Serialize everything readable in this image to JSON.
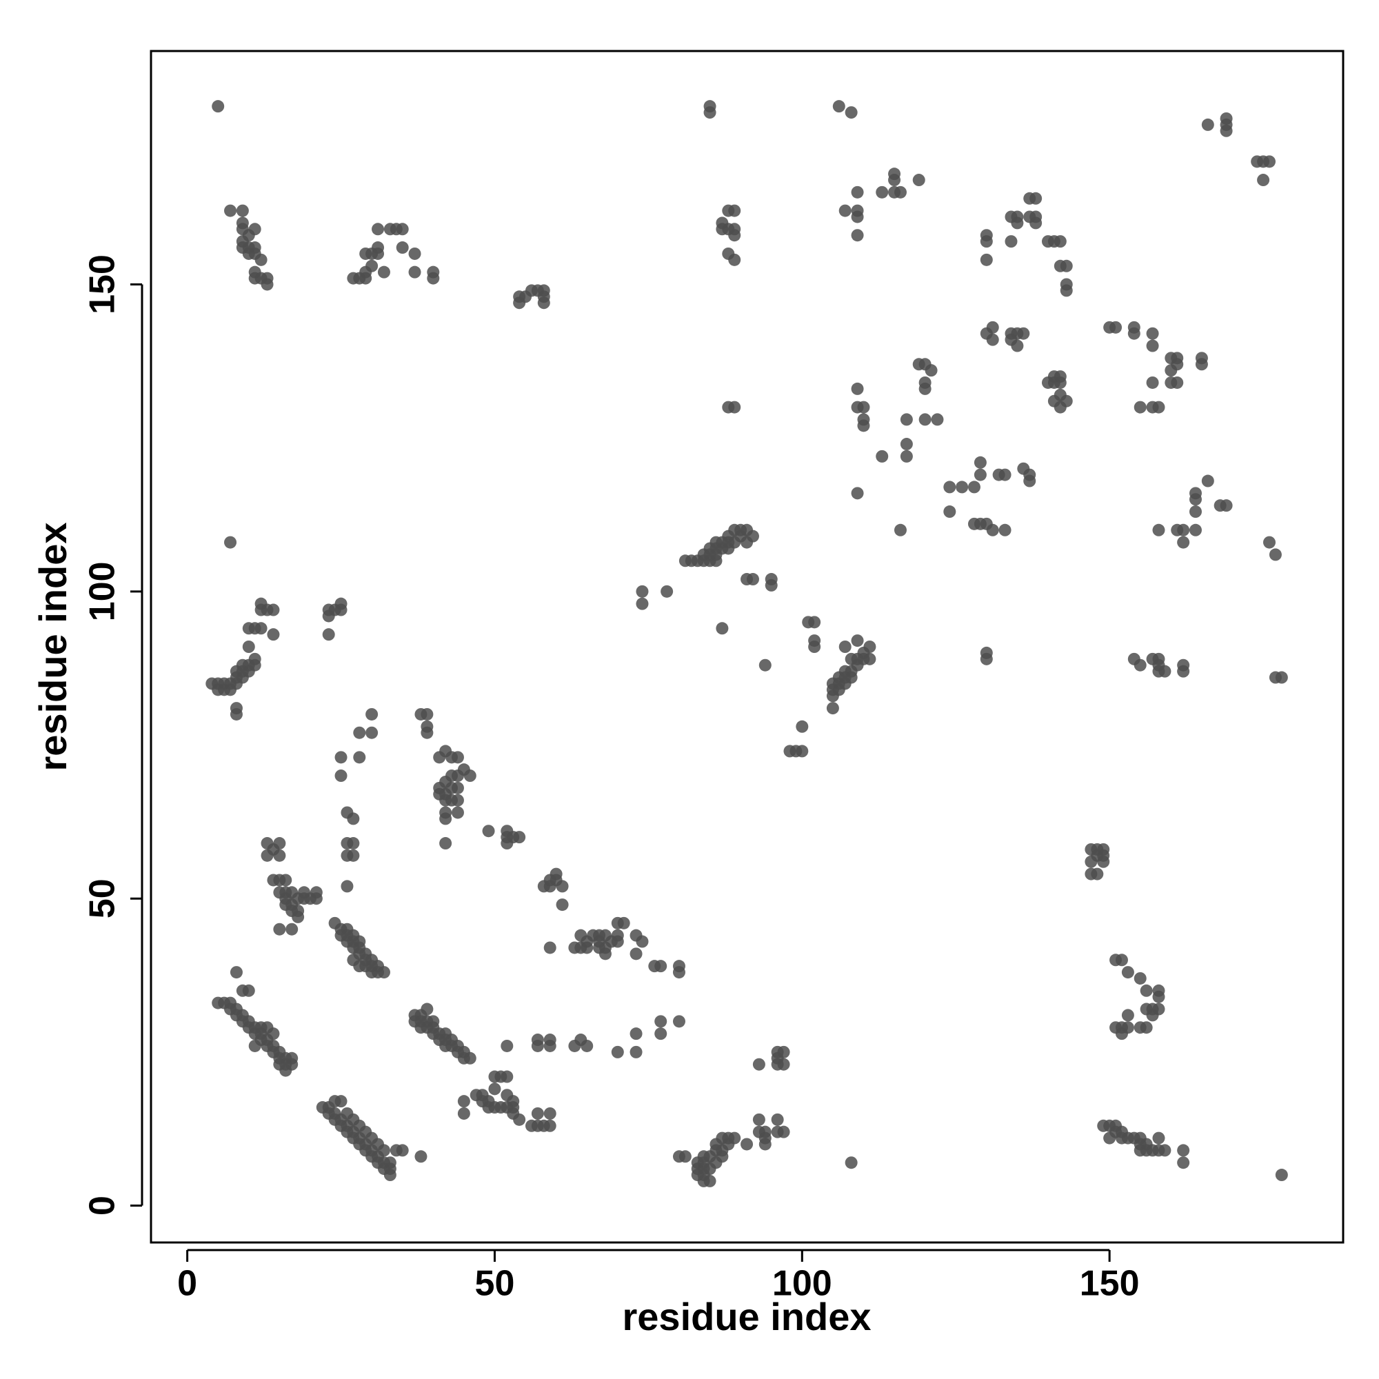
{
  "chart_data": {
    "type": "scatter",
    "xlabel": "residue index",
    "ylabel": "residue index",
    "xlim": [
      -5.9,
      188
    ],
    "ylim": [
      -6,
      188
    ],
    "xticks": [
      0,
      50,
      100,
      150
    ],
    "yticks": [
      0,
      50,
      100,
      150
    ],
    "color": "#4d4d4d",
    "x": [
      5,
      5,
      6,
      7,
      7,
      8,
      8,
      9,
      9,
      10,
      10,
      11,
      11,
      12,
      12,
      13,
      13,
      14,
      14,
      15,
      15,
      16,
      16,
      17,
      17,
      8,
      9,
      10,
      11,
      12,
      13,
      14,
      15,
      16,
      22,
      23,
      23,
      24,
      24,
      25,
      25,
      26,
      26,
      27,
      27,
      28,
      28,
      29,
      29,
      30,
      30,
      31,
      31,
      32,
      32,
      33,
      33,
      33,
      34,
      35,
      38,
      24,
      25,
      26,
      27,
      28,
      29,
      30,
      31,
      32,
      37,
      37,
      38,
      38,
      38,
      39,
      39,
      40,
      40,
      41,
      41,
      42,
      42,
      43,
      43,
      44,
      44,
      45,
      45,
      46,
      39,
      40,
      42,
      24,
      25,
      25,
      26,
      26,
      26,
      27,
      27,
      27,
      28,
      28,
      28,
      29,
      29,
      29,
      30,
      30,
      30,
      31,
      31,
      32,
      27,
      28,
      13,
      13,
      14,
      15,
      15,
      14,
      15,
      16,
      15,
      16,
      16,
      17,
      17,
      17,
      18,
      18,
      19,
      19,
      20,
      21,
      21,
      15,
      17,
      16,
      18,
      4,
      5,
      5,
      6,
      6,
      7,
      7,
      8,
      8,
      8,
      9,
      9,
      9,
      10,
      10,
      11,
      11,
      8,
      8,
      10,
      10,
      11,
      12,
      12,
      12,
      13,
      14,
      14,
      7,
      23,
      23,
      24,
      25,
      25,
      23,
      7,
      9,
      9,
      9,
      9,
      9,
      10,
      10,
      10,
      11,
      11,
      11,
      11,
      11,
      12,
      12,
      13,
      13,
      27,
      28,
      29,
      29,
      29,
      30,
      30,
      31,
      31,
      31,
      32,
      33,
      34,
      35,
      35,
      37,
      37,
      40,
      40,
      54,
      54,
      55,
      56,
      57,
      58,
      58,
      58,
      25,
      25,
      26,
      27,
      26,
      27,
      26,
      27,
      26,
      28,
      30,
      28,
      30,
      38,
      39,
      39,
      39,
      41,
      42,
      43,
      41,
      41,
      42,
      42,
      42,
      42,
      42,
      43,
      43,
      43,
      44,
      44,
      44,
      44,
      45,
      46,
      42,
      44,
      49,
      52,
      52,
      52,
      53,
      54,
      58,
      59,
      59,
      60,
      60,
      61,
      61,
      59,
      63,
      64,
      64,
      65,
      65,
      66,
      67,
      67,
      67,
      68,
      68,
      68,
      69,
      70,
      70,
      70,
      71,
      73,
      73,
      74,
      76,
      77,
      80,
      80,
      77,
      80,
      77,
      73,
      73,
      70,
      64,
      65,
      63,
      57,
      57,
      59,
      59,
      52,
      45,
      45,
      47,
      48,
      48,
      49,
      49,
      50,
      50,
      50,
      51,
      51,
      52,
      52,
      52,
      53,
      53,
      53,
      54,
      56,
      57,
      57,
      58,
      59,
      59,
      80,
      81,
      83,
      83,
      83,
      84,
      84,
      84,
      84,
      84,
      85,
      85,
      85,
      86,
      86,
      86,
      87,
      87,
      87,
      88,
      88,
      89,
      91,
      93,
      93,
      94,
      94,
      94,
      96,
      96,
      97,
      108,
      93,
      96,
      96,
      96,
      97,
      97,
      85,
      85,
      106,
      108,
      88,
      89,
      87,
      87,
      88,
      89,
      89,
      88,
      89,
      81,
      82,
      83,
      84,
      84,
      85,
      85,
      85,
      86,
      86,
      86,
      86,
      87,
      87,
      88,
      88,
      88,
      89,
      89,
      90,
      90,
      91,
      91,
      92,
      91,
      92,
      95,
      95,
      87,
      88,
      89,
      94,
      74,
      74,
      78,
      98,
      99,
      100,
      100,
      101,
      102,
      102,
      102,
      105,
      105,
      105,
      105,
      106,
      106,
      106,
      107,
      107,
      107,
      108,
      108,
      108,
      109,
      109,
      110,
      110,
      111,
      111,
      109,
      107,
      109,
      109,
      110,
      110,
      110,
      109,
      113,
      116,
      117,
      117,
      117,
      119,
      120,
      120,
      120,
      120,
      121,
      122,
      107,
      109,
      109,
      109,
      109,
      113,
      115,
      115,
      115,
      116,
      119,
      124,
      124,
      126,
      128,
      129,
      129,
      128,
      129,
      131,
      130,
      133,
      132,
      133,
      136,
      137,
      137,
      130,
      130,
      130,
      130,
      131,
      131,
      134,
      134,
      135,
      135,
      134,
      134,
      135,
      135,
      136,
      137,
      137,
      138,
      138,
      138,
      140,
      141,
      142,
      142,
      143,
      143,
      143,
      140,
      141,
      141,
      142,
      142,
      141,
      142,
      142,
      143,
      150,
      151,
      154,
      154,
      157,
      157,
      157,
      155,
      157,
      158,
      160,
      160,
      161,
      161,
      161,
      160,
      165,
      165,
      166,
      168,
      169,
      164,
      164,
      164,
      164,
      158,
      161,
      162,
      162,
      154,
      155,
      157,
      158,
      158,
      159,
      162,
      162,
      158,
      130,
      130,
      176,
      177,
      177,
      178,
      166,
      169,
      169,
      169,
      174,
      175,
      176,
      175,
      147,
      148,
      149,
      147,
      148,
      149,
      149,
      147,
      148,
      151,
      152,
      153,
      155,
      156,
      158,
      158,
      158,
      151,
      152,
      152,
      153,
      153,
      155,
      156,
      156,
      157,
      157,
      149,
      150,
      150,
      151,
      151,
      152,
      152,
      153,
      154,
      155,
      155,
      155,
      156,
      156,
      157,
      158,
      158,
      159,
      162,
      162,
      178
    ],
    "y": [
      179,
      33,
      33,
      33,
      32,
      32,
      31,
      31,
      30,
      30,
      29,
      29,
      28,
      28,
      27,
      27,
      26,
      26,
      25,
      25,
      24,
      24,
      23,
      23,
      24,
      38,
      35,
      35,
      26,
      29,
      29,
      28,
      23,
      22,
      16,
      16,
      15,
      15,
      14,
      14,
      13,
      13,
      12,
      12,
      11,
      11,
      10,
      10,
      9,
      9,
      8,
      8,
      7,
      7,
      6,
      6,
      5,
      7,
      9,
      9,
      8,
      17,
      17,
      15,
      14,
      13,
      12,
      11,
      10,
      9,
      31,
      30,
      31,
      30,
      29,
      30,
      29,
      29,
      28,
      28,
      27,
      28,
      27,
      27,
      26,
      26,
      25,
      25,
      24,
      24,
      32,
      30,
      26,
      46,
      45,
      44,
      45,
      44,
      43,
      44,
      43,
      42,
      43,
      42,
      41,
      41,
      40,
      39,
      40,
      39,
      38,
      39,
      38,
      38,
      40,
      39,
      59,
      57,
      58,
      59,
      57,
      53,
      53,
      53,
      51,
      51,
      50,
      51,
      49,
      48,
      48,
      50,
      51,
      50,
      50,
      51,
      50,
      45,
      45,
      49,
      47,
      85,
      85,
      84,
      85,
      84,
      84,
      85,
      85,
      86,
      87,
      86,
      87,
      88,
      87,
      88,
      88,
      89,
      80,
      81,
      91,
      94,
      94,
      94,
      98,
      97,
      97,
      97,
      93,
      108,
      97,
      96,
      97,
      98,
      97,
      93,
      162,
      162,
      160,
      159,
      157,
      156,
      158,
      156,
      155,
      159,
      156,
      155,
      152,
      151,
      154,
      151,
      151,
      150,
      151,
      151,
      155,
      152,
      151,
      153,
      155,
      156,
      159,
      155,
      152,
      159,
      159,
      159,
      156,
      155,
      152,
      152,
      151,
      148,
      147,
      148,
      149,
      149,
      149,
      148,
      147,
      73,
      70,
      64,
      63,
      59,
      59,
      57,
      57,
      52,
      77,
      77,
      73,
      80,
      80,
      80,
      78,
      77,
      73,
      74,
      73,
      68,
      67,
      69,
      67,
      66,
      64,
      63,
      70,
      68,
      66,
      70,
      68,
      66,
      64,
      71,
      70,
      59,
      73,
      61,
      61,
      60,
      59,
      60,
      60,
      52,
      53,
      52,
      54,
      53,
      52,
      49,
      42,
      42,
      44,
      42,
      43,
      42,
      44,
      44,
      43,
      42,
      44,
      42,
      41,
      43,
      44,
      46,
      43,
      46,
      44,
      41,
      43,
      39,
      39,
      39,
      38,
      30,
      30,
      28,
      28,
      25,
      25,
      27,
      26,
      26,
      27,
      26,
      27,
      26,
      26,
      15,
      17,
      18,
      18,
      17,
      17,
      16,
      16,
      19,
      21,
      21,
      16,
      21,
      18,
      16,
      17,
      16,
      15,
      14,
      13,
      13,
      15,
      13,
      15,
      13,
      8,
      8,
      7,
      6,
      5,
      8,
      7,
      6,
      5,
      4,
      8,
      6,
      4,
      9,
      7,
      10,
      9,
      8,
      11,
      10,
      11,
      11,
      10,
      14,
      12,
      11,
      12,
      10,
      14,
      12,
      12,
      7,
      23,
      23,
      24,
      25,
      23,
      25,
      179,
      178,
      179,
      178,
      162,
      162,
      160,
      159,
      159,
      159,
      158,
      155,
      154,
      105,
      105,
      105,
      106,
      105,
      107,
      106,
      105,
      108,
      107,
      106,
      105,
      108,
      107,
      109,
      108,
      107,
      110,
      108,
      110,
      109,
      110,
      108,
      109,
      102,
      102,
      102,
      101,
      94,
      130,
      130,
      88,
      100,
      98,
      100,
      74,
      74,
      74,
      78,
      95,
      95,
      92,
      91,
      81,
      83,
      84,
      85,
      86,
      85,
      84,
      87,
      86,
      85,
      87,
      86,
      89,
      89,
      88,
      90,
      89,
      91,
      89,
      92,
      91,
      133,
      130,
      130,
      128,
      127,
      116,
      122,
      110,
      128,
      124,
      122,
      137,
      137,
      134,
      133,
      128,
      136,
      128,
      162,
      165,
      162,
      161,
      158,
      165,
      165,
      167,
      168,
      165,
      167,
      113,
      117,
      117,
      117,
      121,
      119,
      111,
      111,
      110,
      111,
      110,
      119,
      119,
      120,
      119,
      118,
      142,
      158,
      157,
      154,
      143,
      141,
      161,
      157,
      161,
      160,
      142,
      141,
      140,
      142,
      142,
      164,
      161,
      164,
      161,
      160,
      157,
      157,
      153,
      157,
      153,
      150,
      149,
      134,
      134,
      135,
      134,
      135,
      131,
      132,
      130,
      131,
      143,
      143,
      143,
      142,
      142,
      140,
      134,
      130,
      130,
      130,
      138,
      136,
      138,
      137,
      134,
      134,
      138,
      137,
      118,
      114,
      114,
      116,
      115,
      113,
      110,
      110,
      110,
      110,
      108,
      89,
      88,
      89,
      89,
      88,
      87,
      88,
      87,
      87,
      90,
      89,
      108,
      106,
      86,
      86,
      176,
      177,
      176,
      175,
      170,
      170,
      170,
      167,
      58,
      58,
      58,
      56,
      57,
      57,
      56,
      54,
      54,
      40,
      40,
      38,
      37,
      35,
      35,
      34,
      32,
      29,
      29,
      28,
      29,
      31,
      29,
      29,
      32,
      31,
      32,
      13,
      13,
      11,
      13,
      12,
      12,
      11,
      11,
      11,
      11,
      10,
      9,
      10,
      9,
      9,
      11,
      9,
      9,
      9,
      7,
      5
    ]
  }
}
